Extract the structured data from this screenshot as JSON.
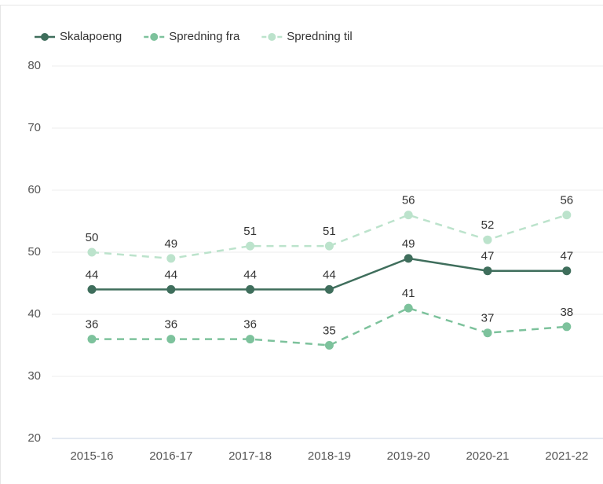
{
  "chart_data": {
    "type": "line",
    "categories": [
      "2015-16",
      "2016-17",
      "2017-18",
      "2018-19",
      "2019-20",
      "2020-21",
      "2021-22"
    ],
    "series": [
      {
        "name": "Skalapoeng",
        "color": "#3f6e5c",
        "dashed": false,
        "values": [
          44,
          44,
          44,
          44,
          49,
          47,
          47
        ]
      },
      {
        "name": "Spredning fra",
        "color": "#7dc29c",
        "dashed": true,
        "values": [
          36,
          36,
          36,
          35,
          41,
          37,
          38
        ]
      },
      {
        "name": "Spredning til",
        "color": "#bce3cc",
        "dashed": true,
        "values": [
          50,
          49,
          51,
          51,
          56,
          52,
          56
        ]
      }
    ],
    "ylim": [
      20,
      80
    ],
    "yticks": [
      20,
      30,
      40,
      50,
      60,
      70,
      80
    ],
    "grid": true,
    "legend": "top-left"
  }
}
